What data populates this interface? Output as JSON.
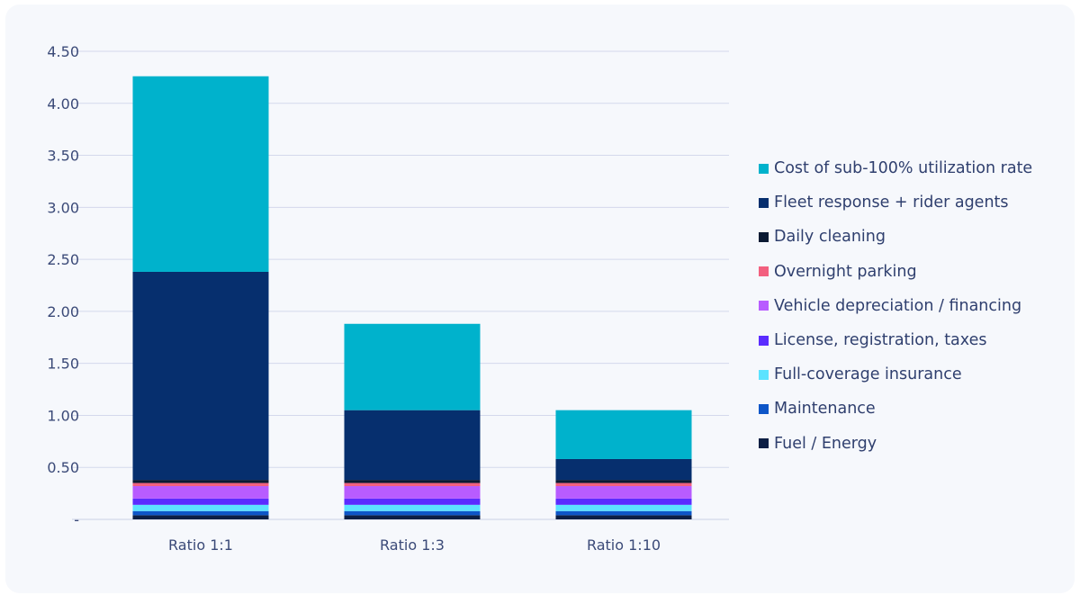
{
  "chart_data": {
    "type": "stacked-bar",
    "categories": [
      "Ratio 1:1",
      "Ratio 1:3",
      "Ratio 1:10"
    ],
    "ylim": [
      0,
      4.5
    ],
    "yticks": [
      "-",
      "0.50",
      "1.00",
      "1.50",
      "2.00",
      "2.50",
      "3.00",
      "3.50",
      "4.00",
      "4.50"
    ],
    "grid": true,
    "legend_position": "right",
    "series": [
      {
        "name": "Fuel / Energy",
        "color": "#0d1f44",
        "values": [
          0.04,
          0.04,
          0.04
        ]
      },
      {
        "name": "Maintenance",
        "color": "#0e56c8",
        "values": [
          0.04,
          0.04,
          0.04
        ]
      },
      {
        "name": "Full-coverage insurance",
        "color": "#5ce3ff",
        "values": [
          0.06,
          0.06,
          0.06
        ]
      },
      {
        "name": "License, registration, taxes",
        "color": "#5b2cff",
        "values": [
          0.06,
          0.06,
          0.06
        ]
      },
      {
        "name": "Vehicle depreciation / financing",
        "color": "#b85cff",
        "values": [
          0.12,
          0.12,
          0.12
        ]
      },
      {
        "name": "Overnight parking",
        "color": "#f2607f",
        "values": [
          0.03,
          0.03,
          0.03
        ]
      },
      {
        "name": "Daily cleaning",
        "color": "#0b1a33",
        "values": [
          0.03,
          0.03,
          0.03
        ]
      },
      {
        "name": "Fleet response + rider agents",
        "color": "#062f6e",
        "values": [
          2.0,
          0.67,
          0.2
        ]
      },
      {
        "name": "Cost of sub-100% utilization rate",
        "color": "#00b2cc",
        "values": [
          1.88,
          0.83,
          0.47
        ]
      }
    ]
  }
}
